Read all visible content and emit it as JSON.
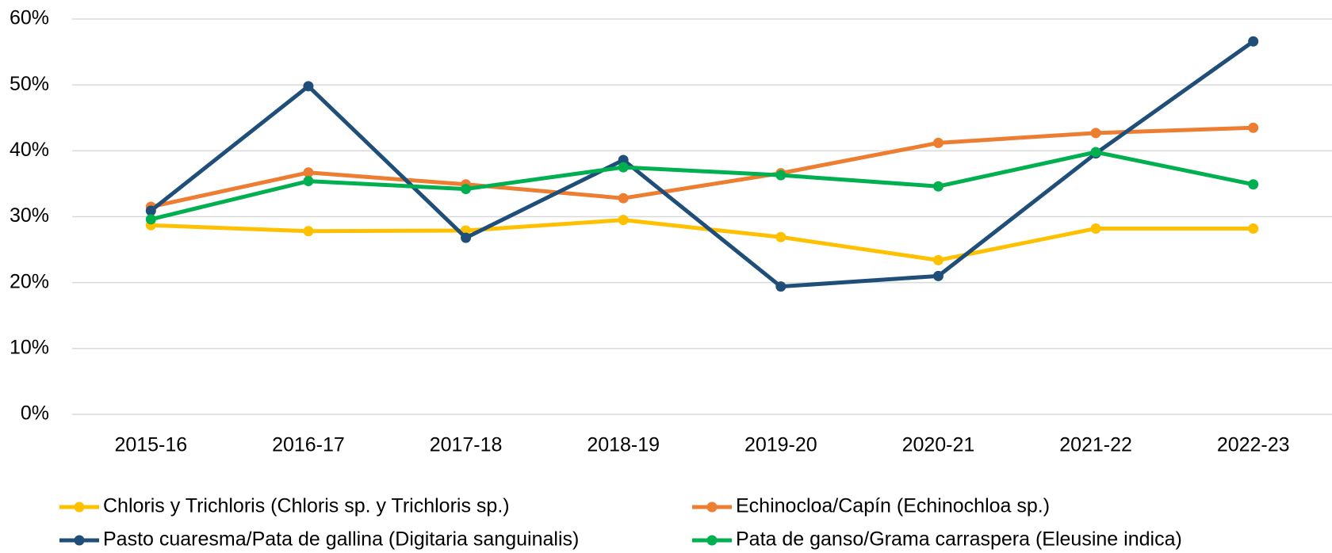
{
  "chart_data": {
    "type": "line",
    "categories": [
      "2015-16",
      "2016-17",
      "2017-18",
      "2018-19",
      "2019-20",
      "2020-21",
      "2021-22",
      "2022-23"
    ],
    "series": [
      {
        "name": "Chloris y Trichloris (Chloris sp. y Trichloris sp.)",
        "color": "#ffc000",
        "values": [
          28.7,
          27.8,
          27.9,
          29.5,
          26.9,
          23.4,
          28.2,
          28.2
        ]
      },
      {
        "name": "Echinocloa/Capín (Echinochloa sp.)",
        "color": "#ed7d31",
        "values": [
          31.5,
          36.7,
          34.9,
          32.8,
          36.6,
          41.2,
          42.7,
          43.5
        ]
      },
      {
        "name": "Pasto cuaresma/Pata de gallina (Digitaria sanguinalis)",
        "color": "#1f4e79",
        "values": [
          30.9,
          49.8,
          26.8,
          38.6,
          19.4,
          21.0,
          39.6,
          56.6
        ]
      },
      {
        "name": "Pata de ganso/Grama carraspera (Eleusine indica)",
        "color": "#00b050",
        "values": [
          29.6,
          35.4,
          34.2,
          37.5,
          36.3,
          34.6,
          39.8,
          34.9
        ]
      }
    ],
    "ylim": [
      0,
      60
    ],
    "yticks": [
      {
        "value": 0,
        "label": "0%"
      },
      {
        "value": 10,
        "label": "10%"
      },
      {
        "value": 20,
        "label": "20%"
      },
      {
        "value": 30,
        "label": "30%"
      },
      {
        "value": 40,
        "label": "40%"
      },
      {
        "value": 50,
        "label": "50%"
      },
      {
        "value": 60,
        "label": "60%"
      }
    ],
    "grid": true,
    "legend": "bottom"
  }
}
